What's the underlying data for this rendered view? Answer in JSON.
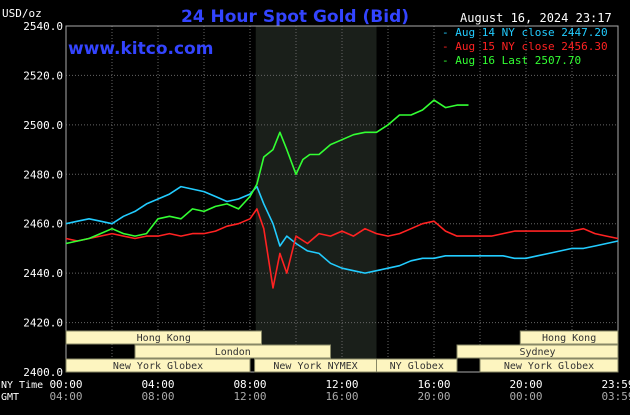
{
  "header": {
    "title": "24 Hour Spot Gold (Bid)",
    "unit": "USD/oz",
    "datetime": "August 16, 2024 23:17",
    "brand": "www.kitco.com"
  },
  "legend": [
    {
      "label": "Aug 14 NY close 2447.20",
      "color": "#22ccff"
    },
    {
      "label": "Aug 15 NY close 2456.30",
      "color": "#ff2222"
    },
    {
      "label": "Aug 16 Last 2507.70",
      "color": "#33ff33"
    }
  ],
  "timezone_labels": {
    "ny": "NY Time",
    "gmt": "GMT"
  },
  "colors": {
    "background": "#000000",
    "grid": "#666666",
    "shade": "#1a1f1a",
    "session_fill": "#fdf5c0",
    "session_text": "#333333",
    "title": "#3344ff",
    "brand": "#3344ff"
  },
  "sessions": [
    {
      "name": "Hong Kong",
      "start": -1,
      "end": 8.5,
      "row": 0
    },
    {
      "name": "Hong Kong",
      "start": 19.75,
      "end": 25,
      "row": 0
    },
    {
      "name": "London",
      "start": 3,
      "end": 11.5,
      "row": 1
    },
    {
      "name": "Sydney",
      "start": 17,
      "end": 25,
      "row": 1
    },
    {
      "name": "New York Globex",
      "start": -1,
      "end": 8,
      "row": 2
    },
    {
      "name": "New York NYMEX",
      "start": 8.2,
      "end": 13.5,
      "row": 2
    },
    {
      "name": "NY Globex",
      "start": 13.5,
      "end": 17,
      "row": 2
    },
    {
      "name": "New York Globex",
      "start": 18,
      "end": 25,
      "row": 2
    }
  ],
  "chart_data": {
    "type": "line",
    "title": "24 Hour Spot Gold (Bid)",
    "ylabel": "USD/oz",
    "xlabel": "",
    "ylim": [
      2400,
      2540
    ],
    "yticks": [
      2400,
      2420,
      2440,
      2460,
      2480,
      2500,
      2520,
      2540
    ],
    "ytick_labels": [
      "2400.0",
      "2420.0",
      "2440.0",
      "2460.0",
      "2480.0",
      "2500.0",
      "2520.0",
      "2540.0"
    ],
    "xlim": [
      0,
      24
    ],
    "xticks_ny": [
      "00:00",
      "04:00",
      "08:00",
      "12:00",
      "16:00",
      "20:00",
      "23:59"
    ],
    "xticks_gmt": [
      "04:00",
      "08:00",
      "12:00",
      "16:00",
      "20:00",
      "00:00",
      "03:59"
    ],
    "shaded_hours": [
      8.25,
      13.5
    ],
    "grid": true,
    "series": [
      {
        "name": "Aug 14 NY close 2447.20",
        "color": "#22ccff",
        "x": [
          0,
          0.5,
          1,
          1.5,
          2,
          2.5,
          3,
          3.5,
          4,
          4.5,
          5,
          5.5,
          6,
          6.5,
          7,
          7.5,
          8,
          8.3,
          8.6,
          9,
          9.3,
          9.6,
          10,
          10.5,
          11,
          11.5,
          12,
          12.5,
          13,
          13.5,
          14,
          14.5,
          15,
          15.5,
          16,
          16.5,
          17,
          17.5,
          18,
          18.5,
          19,
          19.5,
          20,
          20.5,
          21,
          21.5,
          22,
          22.5,
          23,
          23.5,
          24
        ],
        "values": [
          2460,
          2461,
          2462,
          2461,
          2460,
          2463,
          2465,
          2468,
          2470,
          2472,
          2475,
          2474,
          2473,
          2471,
          2469,
          2470,
          2472,
          2475,
          2468,
          2460,
          2451,
          2455,
          2452,
          2449,
          2448,
          2444,
          2442,
          2441,
          2440,
          2441,
          2442,
          2443,
          2445,
          2446,
          2446,
          2447,
          2447,
          2447,
          2447,
          2447,
          2447,
          2446,
          2446,
          2447,
          2448,
          2449,
          2450,
          2450,
          2451,
          2452,
          2453
        ]
      },
      {
        "name": "Aug 15 NY close 2456.30",
        "color": "#ff2222",
        "x": [
          0,
          0.5,
          1,
          1.5,
          2,
          2.5,
          3,
          3.5,
          4,
          4.5,
          5,
          5.5,
          6,
          6.5,
          7,
          7.5,
          8,
          8.3,
          8.6,
          9,
          9.3,
          9.6,
          10,
          10.5,
          11,
          11.5,
          12,
          12.5,
          13,
          13.5,
          14,
          14.5,
          15,
          15.5,
          16,
          16.5,
          17,
          17.5,
          18,
          18.5,
          19,
          19.5,
          20,
          20.5,
          21,
          21.5,
          22,
          22.5,
          23,
          23.5,
          24
        ],
        "values": [
          2454,
          2453,
          2454,
          2455,
          2456,
          2455,
          2454,
          2455,
          2455,
          2456,
          2455,
          2456,
          2456,
          2457,
          2459,
          2460,
          2462,
          2466,
          2458,
          2434,
          2448,
          2440,
          2455,
          2452,
          2456,
          2455,
          2457,
          2455,
          2458,
          2456,
          2455,
          2456,
          2458,
          2460,
          2461,
          2457,
          2455,
          2455,
          2455,
          2455,
          2456,
          2457,
          2457,
          2457,
          2457,
          2457,
          2457,
          2458,
          2456,
          2455,
          2454
        ]
      },
      {
        "name": "Aug 16 Last 2507.70",
        "color": "#33ff33",
        "x": [
          0,
          0.5,
          1,
          1.5,
          2,
          2.5,
          3,
          3.5,
          4,
          4.5,
          5,
          5.5,
          6,
          6.5,
          7,
          7.5,
          8,
          8.3,
          8.6,
          9,
          9.3,
          9.6,
          10,
          10.3,
          10.6,
          11,
          11.5,
          12,
          12.5,
          13,
          13.5,
          14,
          14.5,
          15,
          15.5,
          16,
          16.5,
          17,
          17.5
        ],
        "values": [
          2452,
          2453,
          2454,
          2456,
          2458,
          2456,
          2455,
          2456,
          2462,
          2463,
          2462,
          2466,
          2465,
          2467,
          2468,
          2466,
          2471,
          2476,
          2487,
          2490,
          2497,
          2490,
          2480,
          2486,
          2488,
          2488,
          2492,
          2494,
          2496,
          2497,
          2497,
          2500,
          2504,
          2504,
          2506,
          2510,
          2507,
          2508,
          2508
        ]
      }
    ]
  }
}
